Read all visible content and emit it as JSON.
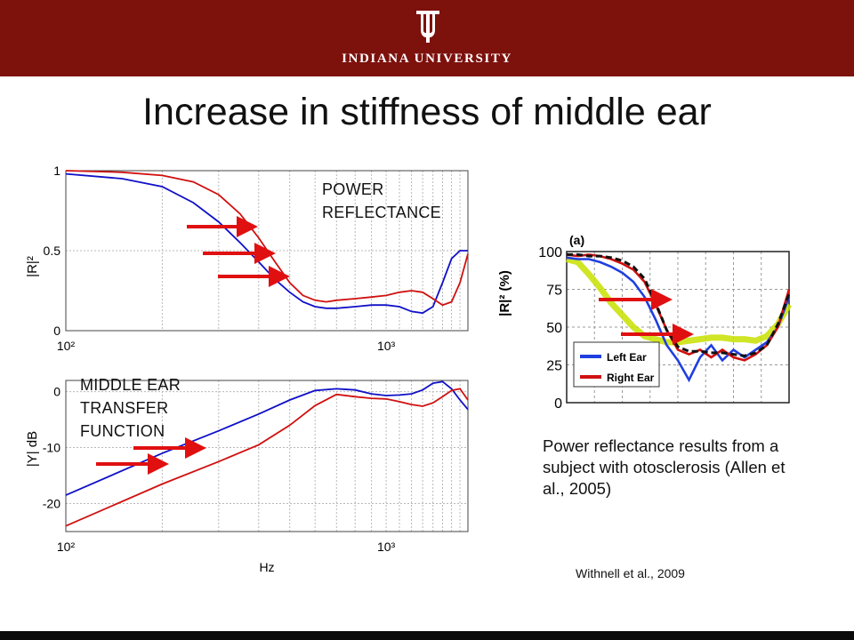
{
  "header": {
    "university": "INDIANA UNIVERSITY",
    "banner_color": "#7d110c",
    "logo_icon": "iu-trident-icon"
  },
  "slide": {
    "title": "Increase in stiffness of middle ear"
  },
  "annotations": {
    "power_reflectance": "POWER\nREFLECTANCE",
    "transfer_function": "MIDDLE EAR\nTRANSFER\nFUNCTION"
  },
  "caption": "Power reflectance results from a subject with otosclerosis (Allen et al., 2005)",
  "citation": "Withnell et al., 2009",
  "chart_data": [
    {
      "type": "line",
      "xscale": "log",
      "xlim": [
        100,
        1800
      ],
      "ylim": [
        0,
        1
      ],
      "ylabel": "|R|²",
      "xticks": [
        "10²",
        "10³"
      ],
      "yticks": [
        "0",
        "0.5",
        "1"
      ],
      "grid": true,
      "series": [
        {
          "color": "#1010c8",
          "x": [
            100,
            150,
            200,
            250,
            300,
            350,
            400,
            450,
            500,
            550,
            600,
            650,
            700,
            800,
            900,
            1000,
            1100,
            1200,
            1300,
            1400,
            1500,
            1600,
            1700,
            1800
          ],
          "y": [
            0.98,
            0.95,
            0.9,
            0.8,
            0.68,
            0.55,
            0.43,
            0.32,
            0.24,
            0.18,
            0.15,
            0.14,
            0.14,
            0.15,
            0.16,
            0.16,
            0.15,
            0.12,
            0.11,
            0.15,
            0.3,
            0.45,
            0.5,
            0.5
          ]
        },
        {
          "color": "#d01010",
          "x": [
            100,
            150,
            200,
            250,
            300,
            350,
            400,
            450,
            500,
            550,
            600,
            650,
            700,
            800,
            900,
            1000,
            1100,
            1200,
            1300,
            1400,
            1500,
            1600,
            1700,
            1800
          ],
          "y": [
            1.0,
            0.99,
            0.97,
            0.93,
            0.85,
            0.73,
            0.58,
            0.43,
            0.3,
            0.22,
            0.19,
            0.18,
            0.19,
            0.2,
            0.21,
            0.22,
            0.24,
            0.25,
            0.24,
            0.2,
            0.16,
            0.18,
            0.3,
            0.48
          ]
        }
      ]
    },
    {
      "type": "line",
      "xscale": "log",
      "xlim": [
        100,
        1800
      ],
      "ylim": [
        -25,
        2
      ],
      "ylabel": "|Y| dB",
      "xlabel": "Hz",
      "xticks": [
        "10²",
        "10³"
      ],
      "yticks": [
        "0",
        "-10",
        "-20"
      ],
      "grid": true,
      "series": [
        {
          "color": "#1010c8",
          "x": [
            100,
            200,
            300,
            400,
            500,
            600,
            700,
            800,
            900,
            1000,
            1100,
            1200,
            1300,
            1400,
            1500,
            1600,
            1700,
            1800
          ],
          "y": [
            -18.5,
            -11,
            -7,
            -4,
            -1.5,
            0.2,
            0.5,
            0.3,
            -0.4,
            -0.7,
            -0.6,
            -0.4,
            0.3,
            1.5,
            1.8,
            0.5,
            -1.5,
            -3.2
          ]
        },
        {
          "color": "#d01010",
          "x": [
            100,
            200,
            300,
            400,
            500,
            600,
            700,
            800,
            900,
            1000,
            1100,
            1200,
            1300,
            1400,
            1500,
            1600,
            1700,
            1800
          ],
          "y": [
            -24,
            -16.5,
            -12.5,
            -9.5,
            -6,
            -2.5,
            -0.5,
            -0.9,
            -1.2,
            -1.3,
            -1.8,
            -2.3,
            -2.6,
            -2.0,
            -0.9,
            0.2,
            0.5,
            -1.5
          ]
        }
      ]
    },
    {
      "type": "line",
      "title": "(a)",
      "ylabel": "|R|² (%)",
      "ylim": [
        0,
        100
      ],
      "yticks": [
        "0",
        "25",
        "50",
        "75",
        "100"
      ],
      "grid": true,
      "legend": "bottom-left",
      "series": [
        {
          "name": "Left Ear",
          "color": "#1f3fe0",
          "x": [
            0,
            5,
            10,
            15,
            20,
            25,
            30,
            35,
            40,
            45,
            50,
            55,
            60,
            65,
            70,
            75,
            80,
            85,
            90,
            95,
            100
          ],
          "y": [
            96,
            95,
            95,
            93,
            90,
            86,
            80,
            70,
            55,
            38,
            28,
            15,
            30,
            38,
            28,
            35,
            30,
            35,
            40,
            50,
            70
          ]
        },
        {
          "name": "Right Ear",
          "color": "#d01010",
          "x": [
            0,
            5,
            10,
            15,
            20,
            25,
            30,
            35,
            40,
            45,
            50,
            55,
            60,
            65,
            70,
            75,
            80,
            85,
            90,
            95,
            100
          ],
          "y": [
            98,
            97,
            98,
            97,
            95,
            92,
            88,
            80,
            65,
            48,
            35,
            32,
            35,
            30,
            35,
            30,
            28,
            32,
            38,
            50,
            75
          ]
        },
        {
          "color": "#c8e000",
          "x": [
            0,
            5,
            10,
            15,
            20,
            25,
            30,
            35,
            40,
            45,
            50,
            55,
            60,
            65,
            70,
            75,
            80,
            85,
            90,
            95,
            100
          ],
          "y": [
            95,
            93,
            85,
            76,
            66,
            58,
            50,
            44,
            42,
            40,
            40,
            41,
            42,
            43,
            43,
            42,
            42,
            41,
            44,
            52,
            65
          ]
        },
        {
          "color": "#111111",
          "x": [
            0,
            5,
            10,
            15,
            20,
            25,
            30,
            35,
            40,
            45,
            50,
            55,
            60,
            65,
            70,
            75,
            80,
            85,
            90,
            95,
            100
          ],
          "y": [
            98,
            98,
            97,
            97,
            96,
            94,
            90,
            82,
            66,
            48,
            37,
            34,
            34,
            33,
            33,
            32,
            31,
            33,
            38,
            52,
            72
          ]
        }
      ]
    }
  ]
}
